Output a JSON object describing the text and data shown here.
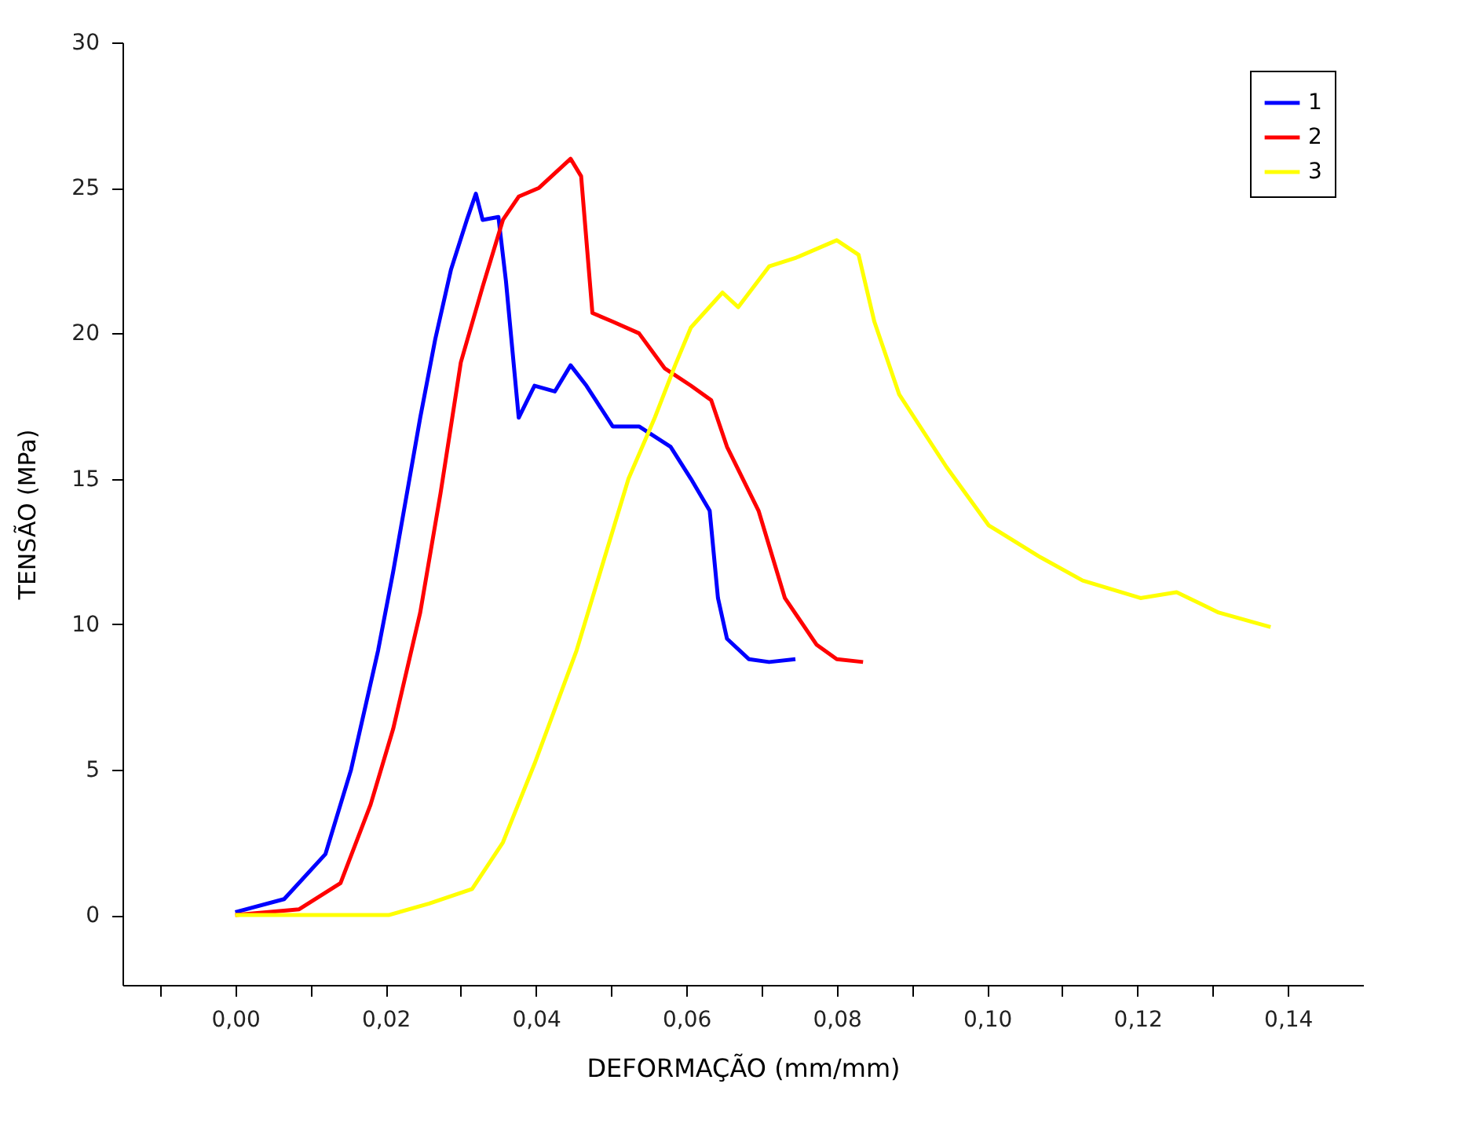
{
  "chart_data": {
    "type": "line",
    "xlabel": "DEFORMAÇÃO (mm/mm)",
    "ylabel": "TENSÃO (MPa)",
    "xlim": [
      -0.015,
      0.15
    ],
    "ylim": [
      -2.4,
      30
    ],
    "xticks": [
      {
        "value": -0.01,
        "label": null
      },
      {
        "value": 0,
        "label": "0,00"
      },
      {
        "value": 0.01,
        "label": null
      },
      {
        "value": 0.02,
        "label": "0,02"
      },
      {
        "value": 0.03,
        "label": null
      },
      {
        "value": 0.04,
        "label": "0,04"
      },
      {
        "value": 0.05,
        "label": null
      },
      {
        "value": 0.06,
        "label": "0,06"
      },
      {
        "value": 0.07,
        "label": null
      },
      {
        "value": 0.08,
        "label": "0,08"
      },
      {
        "value": 0.09,
        "label": null
      },
      {
        "value": 0.1,
        "label": "0,10"
      },
      {
        "value": 0.11,
        "label": null
      },
      {
        "value": 0.12,
        "label": "0,12"
      },
      {
        "value": 0.13,
        "label": null
      },
      {
        "value": 0.14,
        "label": "0,14"
      }
    ],
    "yticks": [
      0,
      5,
      10,
      15,
      20,
      25,
      30
    ],
    "grid": false,
    "legend": "top right",
    "line_style": "solid",
    "marker": "none",
    "series": [
      {
        "name": "1",
        "color": "#0000ff",
        "x": [
          0,
          0.0065,
          0.012,
          0.0154,
          0.019,
          0.021,
          0.0246,
          0.0266,
          0.0287,
          0.0308,
          0.032,
          0.0329,
          0.035,
          0.036,
          0.0377,
          0.0398,
          0.0425,
          0.0446,
          0.0467,
          0.0502,
          0.0537,
          0.0579,
          0.0606,
          0.0631,
          0.0642,
          0.0654,
          0.0683,
          0.071,
          0.0745
        ],
        "values": [
          0.1,
          0.55,
          2.1,
          5.0,
          9.1,
          11.8,
          17.1,
          19.8,
          22.2,
          23.9,
          24.8,
          23.9,
          24.0,
          21.8,
          17.1,
          18.2,
          18.0,
          18.9,
          18.2,
          16.8,
          16.8,
          16.1,
          15.0,
          13.9,
          10.9,
          9.5,
          8.8,
          8.7,
          8.8
        ]
      },
      {
        "name": "2",
        "color": "#ff0000",
        "x": [
          0,
          0.0085,
          0.014,
          0.018,
          0.021,
          0.0246,
          0.0273,
          0.03,
          0.0329,
          0.0356,
          0.0377,
          0.0404,
          0.0425,
          0.0446,
          0.046,
          0.0475,
          0.0502,
          0.0537,
          0.0571,
          0.0606,
          0.0633,
          0.0654,
          0.0696,
          0.0731,
          0.0773,
          0.08,
          0.0835
        ],
        "values": [
          0,
          0.2,
          1.1,
          3.8,
          6.4,
          10.4,
          14.5,
          19.0,
          21.6,
          23.9,
          24.7,
          25.0,
          25.5,
          26.0,
          25.4,
          20.7,
          20.4,
          20.0,
          18.8,
          18.2,
          17.7,
          16.1,
          13.9,
          10.9,
          9.3,
          8.8,
          8.7
        ]
      },
      {
        "name": "3",
        "color": "#ffff00",
        "x": [
          0,
          0.0204,
          0.0258,
          0.0315,
          0.0356,
          0.0398,
          0.0454,
          0.0496,
          0.0523,
          0.0558,
          0.0585,
          0.0606,
          0.0648,
          0.0669,
          0.071,
          0.0746,
          0.08,
          0.0829,
          0.085,
          0.0883,
          0.0946,
          0.1002,
          0.1071,
          0.1127,
          0.1204,
          0.1252,
          0.1308,
          0.1377
        ],
        "values": [
          0,
          0,
          0.4,
          0.9,
          2.5,
          5.2,
          9.1,
          12.7,
          15.0,
          17.1,
          18.9,
          20.2,
          21.4,
          20.9,
          22.3,
          22.6,
          23.2,
          22.7,
          20.4,
          17.9,
          15.4,
          13.4,
          12.3,
          11.5,
          10.9,
          11.1,
          10.4,
          9.9
        ]
      }
    ]
  }
}
